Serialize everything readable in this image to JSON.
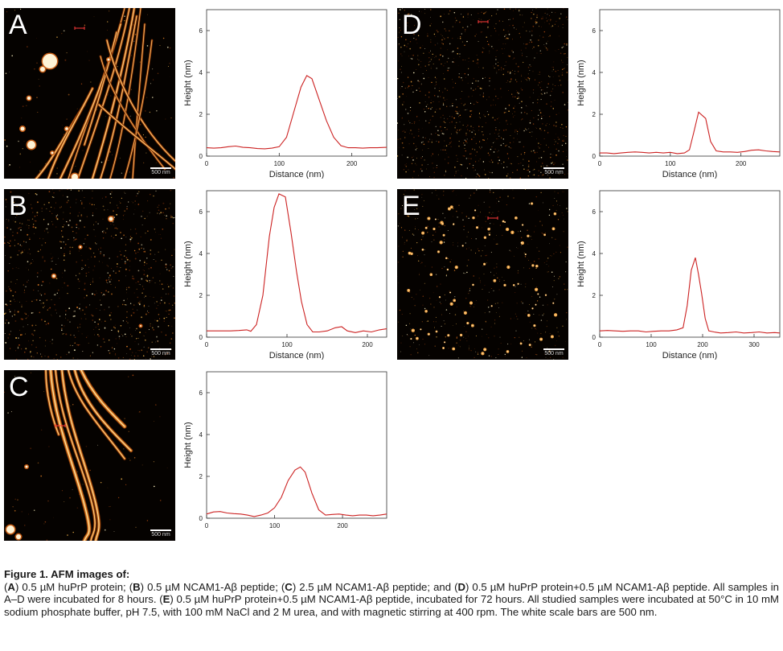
{
  "panels": [
    {
      "letter": "A",
      "scale_bar": "500 nm",
      "profile": {
        "type": "line",
        "xlabel": "Distance (nm)",
        "ylabel": "Height (nm)",
        "xlim": [
          0,
          248
        ],
        "ylim": [
          0,
          7
        ],
        "xticks": [
          0,
          100,
          200
        ],
        "yticks": [
          0,
          2,
          4,
          6
        ],
        "color": "#cc2222",
        "x": [
          0,
          10,
          20,
          30,
          40,
          50,
          60,
          70,
          80,
          90,
          100,
          110,
          120,
          130,
          138,
          145,
          155,
          165,
          175,
          185,
          195,
          205,
          215,
          225,
          235,
          248
        ],
        "y": [
          0.4,
          0.38,
          0.4,
          0.45,
          0.48,
          0.42,
          0.4,
          0.36,
          0.35,
          0.38,
          0.45,
          0.9,
          2.1,
          3.3,
          3.85,
          3.7,
          2.7,
          1.7,
          0.9,
          0.5,
          0.4,
          0.4,
          0.38,
          0.4,
          0.4,
          0.42
        ]
      }
    },
    {
      "letter": "B",
      "scale_bar": "500 nm",
      "profile": {
        "type": "line",
        "xlabel": "Distance (nm)",
        "ylabel": "Height (nm)",
        "xlim": [
          0,
          224
        ],
        "ylim": [
          0,
          7
        ],
        "xticks": [
          0,
          100,
          200
        ],
        "yticks": [
          0,
          2,
          4,
          6
        ],
        "color": "#cc2222",
        "x": [
          0,
          10,
          20,
          30,
          40,
          50,
          55,
          62,
          70,
          78,
          84,
          90,
          98,
          105,
          112,
          118,
          125,
          132,
          140,
          150,
          160,
          168,
          175,
          185,
          195,
          205,
          215,
          224
        ],
        "y": [
          0.3,
          0.3,
          0.3,
          0.3,
          0.32,
          0.35,
          0.28,
          0.6,
          2.0,
          4.8,
          6.2,
          6.85,
          6.7,
          5.0,
          3.1,
          1.7,
          0.6,
          0.25,
          0.25,
          0.3,
          0.45,
          0.5,
          0.3,
          0.22,
          0.3,
          0.25,
          0.35,
          0.4
        ]
      }
    },
    {
      "letter": "C",
      "scale_bar": "500 nm",
      "profile": {
        "type": "line",
        "xlabel": "",
        "ylabel": "Height (nm)",
        "xlim": [
          0,
          265
        ],
        "ylim": [
          0,
          7
        ],
        "xticks": [
          0,
          100,
          200
        ],
        "yticks": [
          0,
          2,
          4,
          6
        ],
        "color": "#cc2222",
        "x": [
          0,
          10,
          20,
          30,
          40,
          50,
          60,
          70,
          80,
          90,
          100,
          110,
          120,
          130,
          138,
          145,
          155,
          165,
          175,
          185,
          195,
          205,
          215,
          225,
          235,
          245,
          255,
          265
        ],
        "y": [
          0.2,
          0.3,
          0.32,
          0.25,
          0.22,
          0.2,
          0.15,
          0.08,
          0.15,
          0.25,
          0.5,
          1.0,
          1.8,
          2.3,
          2.45,
          2.2,
          1.2,
          0.4,
          0.15,
          0.18,
          0.2,
          0.15,
          0.12,
          0.15,
          0.15,
          0.12,
          0.15,
          0.2
        ]
      }
    },
    {
      "letter": "D",
      "scale_bar": "500 nm",
      "profile": {
        "type": "line",
        "xlabel": "Distance (nm)",
        "ylabel": "Height (nm)",
        "xlim": [
          0,
          255
        ],
        "ylim": [
          0,
          7
        ],
        "xticks": [
          0,
          100,
          200
        ],
        "yticks": [
          0,
          2,
          4,
          6
        ],
        "color": "#cc2222",
        "x": [
          0,
          10,
          20,
          30,
          40,
          50,
          60,
          70,
          80,
          90,
          100,
          110,
          120,
          127,
          133,
          140,
          145,
          150,
          157,
          165,
          175,
          185,
          195,
          205,
          215,
          225,
          235,
          245,
          255
        ],
        "y": [
          0.15,
          0.15,
          0.12,
          0.15,
          0.18,
          0.2,
          0.18,
          0.15,
          0.18,
          0.15,
          0.18,
          0.12,
          0.15,
          0.3,
          1.1,
          2.1,
          1.95,
          1.8,
          0.7,
          0.25,
          0.2,
          0.2,
          0.18,
          0.22,
          0.28,
          0.3,
          0.25,
          0.22,
          0.2
        ]
      }
    },
    {
      "letter": "E",
      "scale_bar": "500 nm",
      "profile": {
        "type": "line",
        "xlabel": "Distance (nm)",
        "ylabel": "Height (nm)",
        "xlim": [
          0,
          350
        ],
        "ylim": [
          0,
          7
        ],
        "xticks": [
          0,
          100,
          200,
          300
        ],
        "yticks": [
          0,
          2,
          4,
          6
        ],
        "color": "#cc2222",
        "x": [
          0,
          15,
          30,
          45,
          60,
          75,
          90,
          105,
          120,
          135,
          150,
          162,
          170,
          178,
          186,
          192,
          198,
          205,
          212,
          222,
          235,
          250,
          265,
          280,
          295,
          310,
          325,
          340,
          350
        ],
        "y": [
          0.3,
          0.32,
          0.3,
          0.28,
          0.3,
          0.3,
          0.25,
          0.28,
          0.3,
          0.3,
          0.35,
          0.45,
          1.5,
          3.2,
          3.8,
          3.0,
          2.1,
          0.9,
          0.3,
          0.25,
          0.2,
          0.22,
          0.25,
          0.2,
          0.22,
          0.25,
          0.2,
          0.22,
          0.2
        ]
      }
    }
  ],
  "caption": {
    "title": "Figure 1. AFM images of:",
    "parts": [
      {
        "text": "(",
        "bold": false
      },
      {
        "text": "A",
        "bold": true
      },
      {
        "text": ") 0.5 µM huPrP protein; (",
        "bold": false
      },
      {
        "text": "B",
        "bold": true
      },
      {
        "text": ") 0.5 µM NCAM1-Aβ peptide; (",
        "bold": false
      },
      {
        "text": "C",
        "bold": true
      },
      {
        "text": ") 2.5 µM NCAM1-Aβ peptide; and (",
        "bold": false
      },
      {
        "text": "D",
        "bold": true
      },
      {
        "text": ") 0.5 µM huPrP protein+0.5 µM NCAM1-Aβ peptide. All samples in A–D were incubated for 8 hours. (",
        "bold": false
      },
      {
        "text": "E",
        "bold": true
      },
      {
        "text": ") 0.5 µM huPrP protein+0.5 µM NCAM1-Aβ peptide, incubated for 72 hours. All studied samples were incubated at 50°C in 10 mM sodium phosphate buffer, pH 7.5, with 100 mM NaCl and 2 M urea, and with magnetic stirring at 400 rpm. The white scale bars are 500 nm.",
        "bold": false
      }
    ]
  }
}
